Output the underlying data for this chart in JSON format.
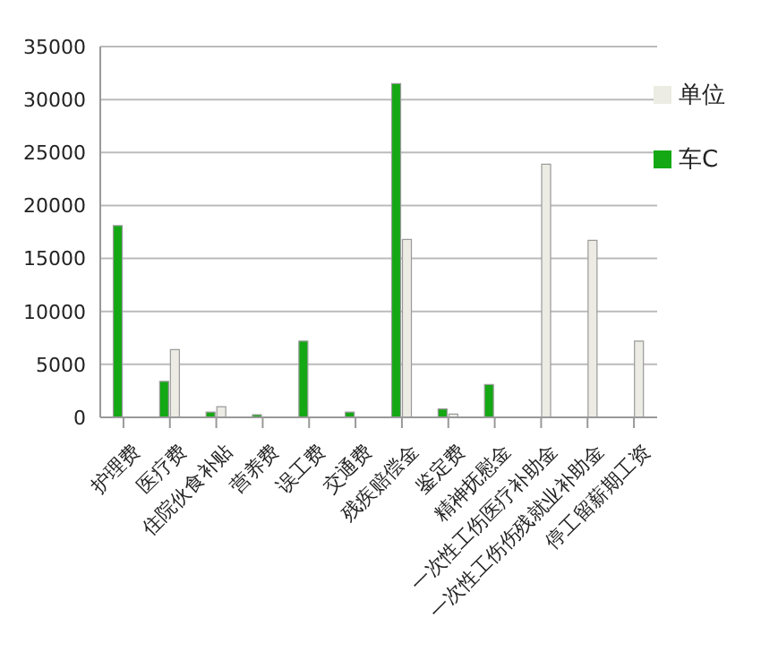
{
  "chart_data": {
    "type": "bar",
    "categories": [
      "护理费",
      "医疗费",
      "住院伙食补贴",
      "营养费",
      "误工费",
      "交通费",
      "残疾赔偿金",
      "鉴定费",
      "精神抚慰金",
      "一次性工伤医疗补助金",
      "一次性工伤伤残就业补助金",
      "停工留薪期工资"
    ],
    "series": [
      {
        "name": "车C",
        "color": "#14a814",
        "values": [
          18100,
          3400,
          500,
          250,
          7200,
          500,
          31500,
          800,
          3100,
          null,
          null,
          null
        ]
      },
      {
        "name": "单位",
        "color": "#ecebe4",
        "values": [
          null,
          6400,
          1000,
          null,
          null,
          null,
          16800,
          300,
          null,
          23900,
          16700,
          7200
        ]
      }
    ],
    "ylim": [
      0,
      35000
    ],
    "yticks": [
      0,
      5000,
      10000,
      15000,
      20000,
      25000,
      30000,
      35000
    ],
    "grid": "y",
    "legend": "top right"
  }
}
